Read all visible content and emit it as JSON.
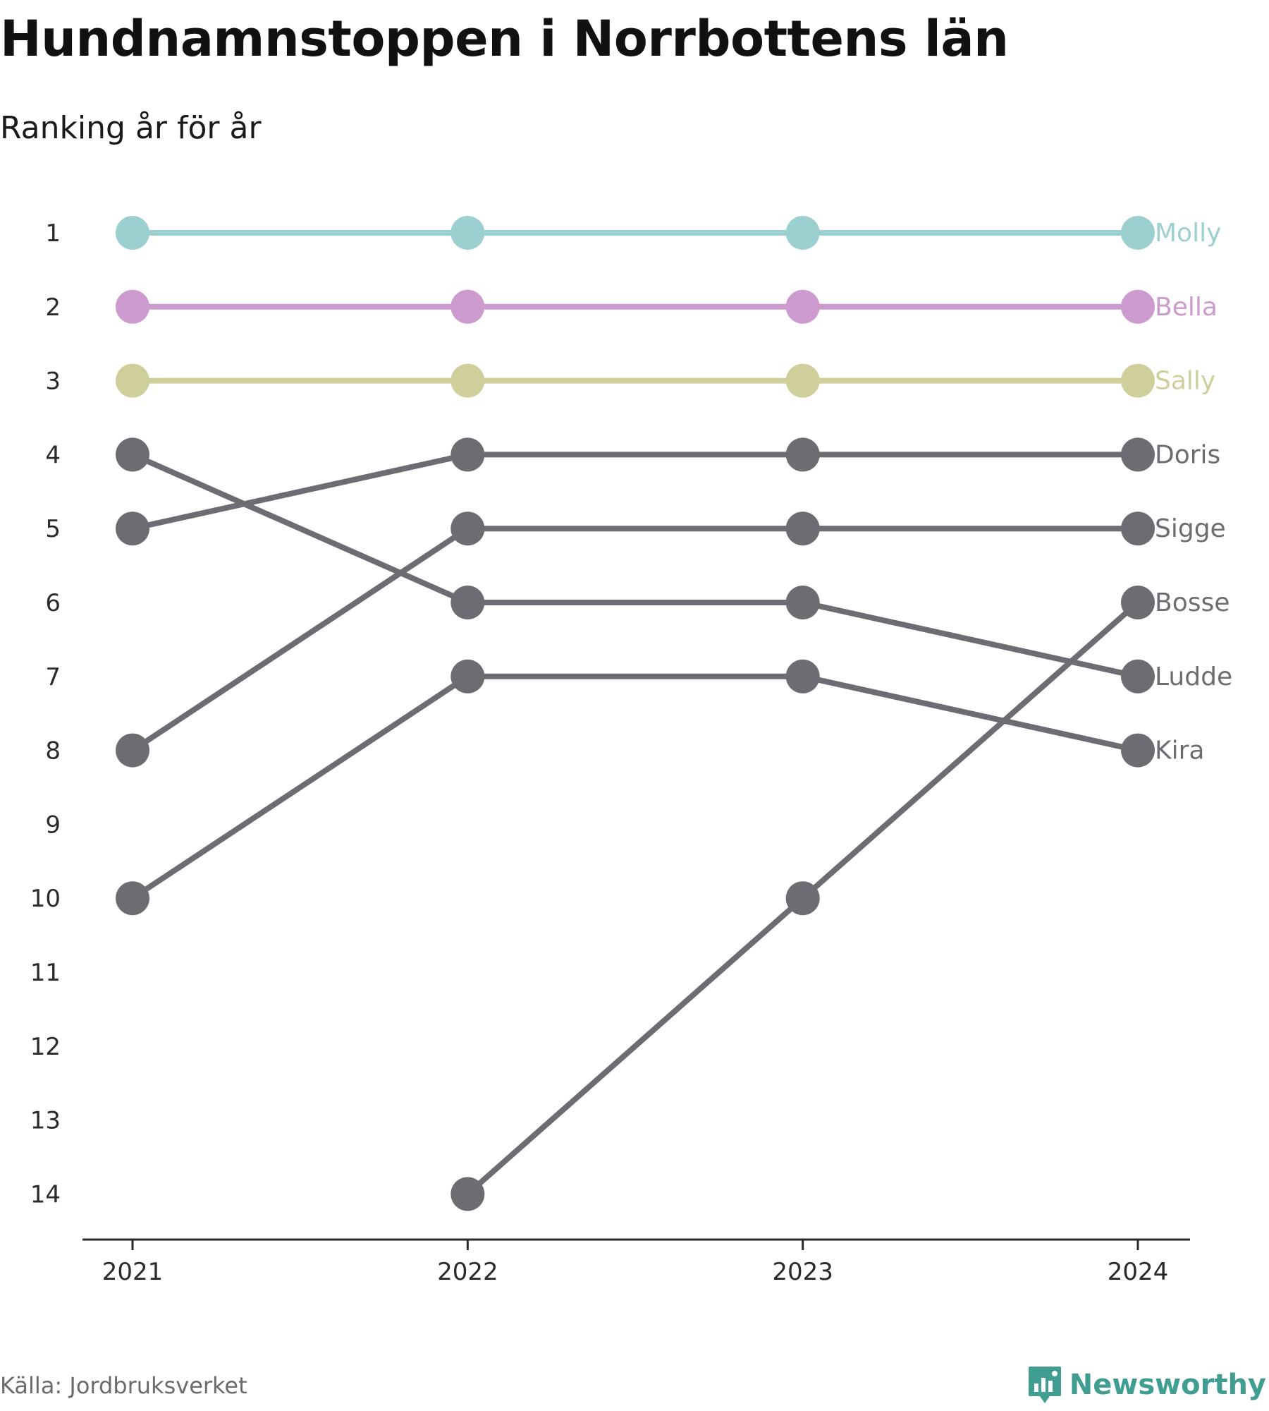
{
  "title": "Hundnamnstoppen i Norrbottens län",
  "subtitle": "Ranking år för år",
  "source": "Källa: Jordbruksverket",
  "brand": {
    "name": "Newsworthy",
    "icon": "newsworthy-logo-icon",
    "color": "#3f9e91"
  },
  "chart_data": {
    "type": "line",
    "subtype": "bump",
    "x": [
      "2021",
      "2022",
      "2023",
      "2024"
    ],
    "y_ticks": [
      1,
      2,
      3,
      4,
      5,
      6,
      7,
      8,
      9,
      10,
      11,
      12,
      13,
      14
    ],
    "ylim": [
      1,
      14
    ],
    "y_reversed": true,
    "grid": false,
    "legend": "end-labels",
    "series": [
      {
        "name": "Molly",
        "values": [
          1,
          1,
          1,
          1
        ],
        "color": "#9ccfcf"
      },
      {
        "name": "Bella",
        "values": [
          2,
          2,
          2,
          2
        ],
        "color": "#cc9acf"
      },
      {
        "name": "Sally",
        "values": [
          3,
          3,
          3,
          3
        ],
        "color": "#cfcf9c"
      },
      {
        "name": "Doris",
        "values": [
          5,
          4,
          4,
          4
        ],
        "color": "#6d6c72"
      },
      {
        "name": "Sigge",
        "values": [
          8,
          5,
          5,
          5
        ],
        "color": "#6d6c72"
      },
      {
        "name": "Bosse",
        "values": [
          null,
          14,
          10,
          6
        ],
        "color": "#6d6c72"
      },
      {
        "name": "Ludde",
        "values": [
          4,
          6,
          6,
          7
        ],
        "color": "#6d6c72"
      },
      {
        "name": "Kira",
        "values": [
          10,
          7,
          7,
          8
        ],
        "color": "#6d6c72"
      }
    ]
  }
}
